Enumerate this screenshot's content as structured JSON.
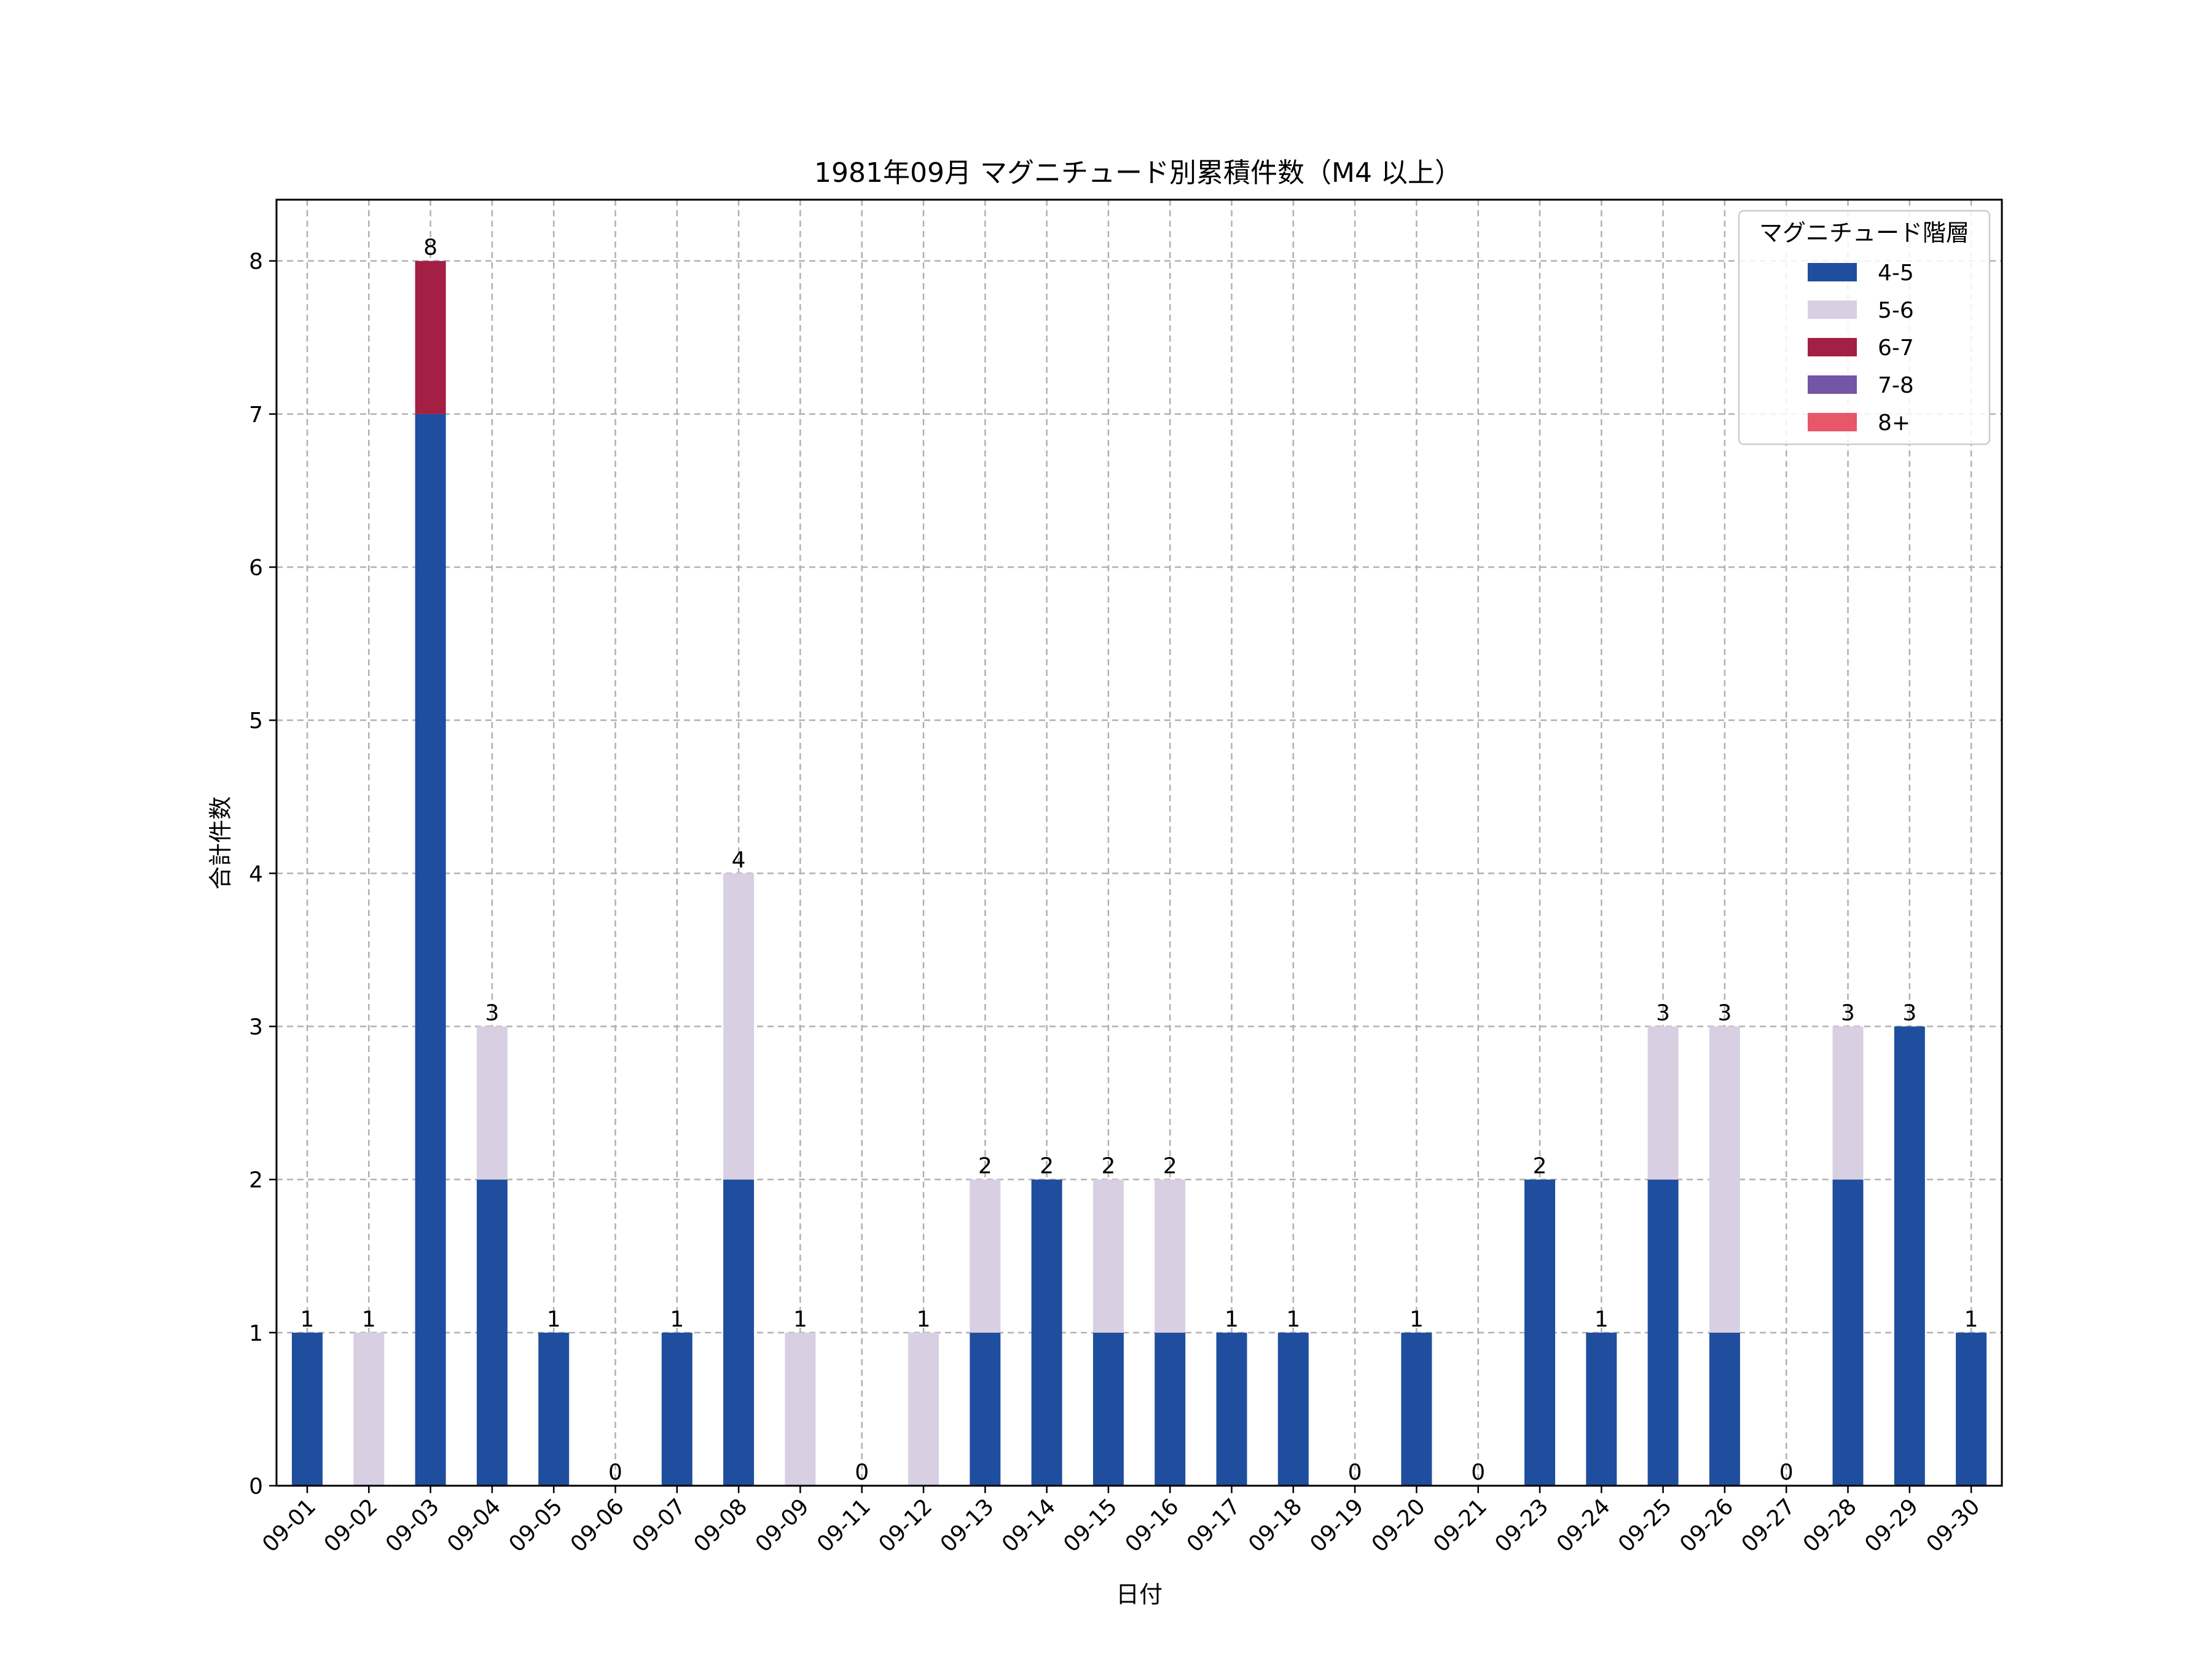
{
  "chart_data": {
    "type": "bar",
    "stacked": true,
    "title": "1981年09月 マグニチュード別累積件数（M4 以上）",
    "xlabel": "日付",
    "ylabel": "合計件数",
    "ylim": [
      0,
      8.4
    ],
    "yticks": [
      0,
      1,
      2,
      3,
      4,
      5,
      6,
      7,
      8
    ],
    "grid": true,
    "legend_position": "top-right",
    "legend_title": "マグニチュード階層",
    "categories": [
      "09-01",
      "09-02",
      "09-03",
      "09-04",
      "09-05",
      "09-06",
      "09-07",
      "09-08",
      "09-09",
      "09-11",
      "09-12",
      "09-13",
      "09-14",
      "09-15",
      "09-16",
      "09-17",
      "09-18",
      "09-19",
      "09-20",
      "09-21",
      "09-23",
      "09-24",
      "09-25",
      "09-26",
      "09-27",
      "09-28",
      "09-29",
      "09-30"
    ],
    "series": [
      {
        "name": "4-5",
        "color": "#1f4e9e",
        "values": [
          1,
          0,
          7,
          2,
          1,
          0,
          1,
          2,
          0,
          0,
          0,
          1,
          2,
          1,
          1,
          1,
          1,
          0,
          1,
          0,
          2,
          1,
          2,
          1,
          0,
          2,
          3,
          1
        ]
      },
      {
        "name": "5-6",
        "color": "#d9cfe3",
        "values": [
          0,
          1,
          0,
          1,
          0,
          0,
          0,
          2,
          1,
          0,
          1,
          1,
          0,
          1,
          1,
          0,
          0,
          0,
          0,
          0,
          0,
          0,
          1,
          2,
          0,
          1,
          0,
          0
        ]
      },
      {
        "name": "6-7",
        "color": "#a31f44",
        "values": [
          0,
          0,
          1,
          0,
          0,
          0,
          0,
          0,
          0,
          0,
          0,
          0,
          0,
          0,
          0,
          0,
          0,
          0,
          0,
          0,
          0,
          0,
          0,
          0,
          0,
          0,
          0,
          0
        ]
      },
      {
        "name": "7-8",
        "color": "#7356a6",
        "values": [
          0,
          0,
          0,
          0,
          0,
          0,
          0,
          0,
          0,
          0,
          0,
          0,
          0,
          0,
          0,
          0,
          0,
          0,
          0,
          0,
          0,
          0,
          0,
          0,
          0,
          0,
          0,
          0
        ]
      },
      {
        "name": "8+",
        "color": "#e8566a",
        "values": [
          0,
          0,
          0,
          0,
          0,
          0,
          0,
          0,
          0,
          0,
          0,
          0,
          0,
          0,
          0,
          0,
          0,
          0,
          0,
          0,
          0,
          0,
          0,
          0,
          0,
          0,
          0,
          0
        ]
      }
    ],
    "totals": [
      1,
      1,
      8,
      3,
      1,
      0,
      1,
      4,
      1,
      0,
      1,
      2,
      2,
      2,
      2,
      1,
      1,
      0,
      1,
      0,
      2,
      1,
      3,
      3,
      0,
      3,
      3,
      1
    ]
  }
}
